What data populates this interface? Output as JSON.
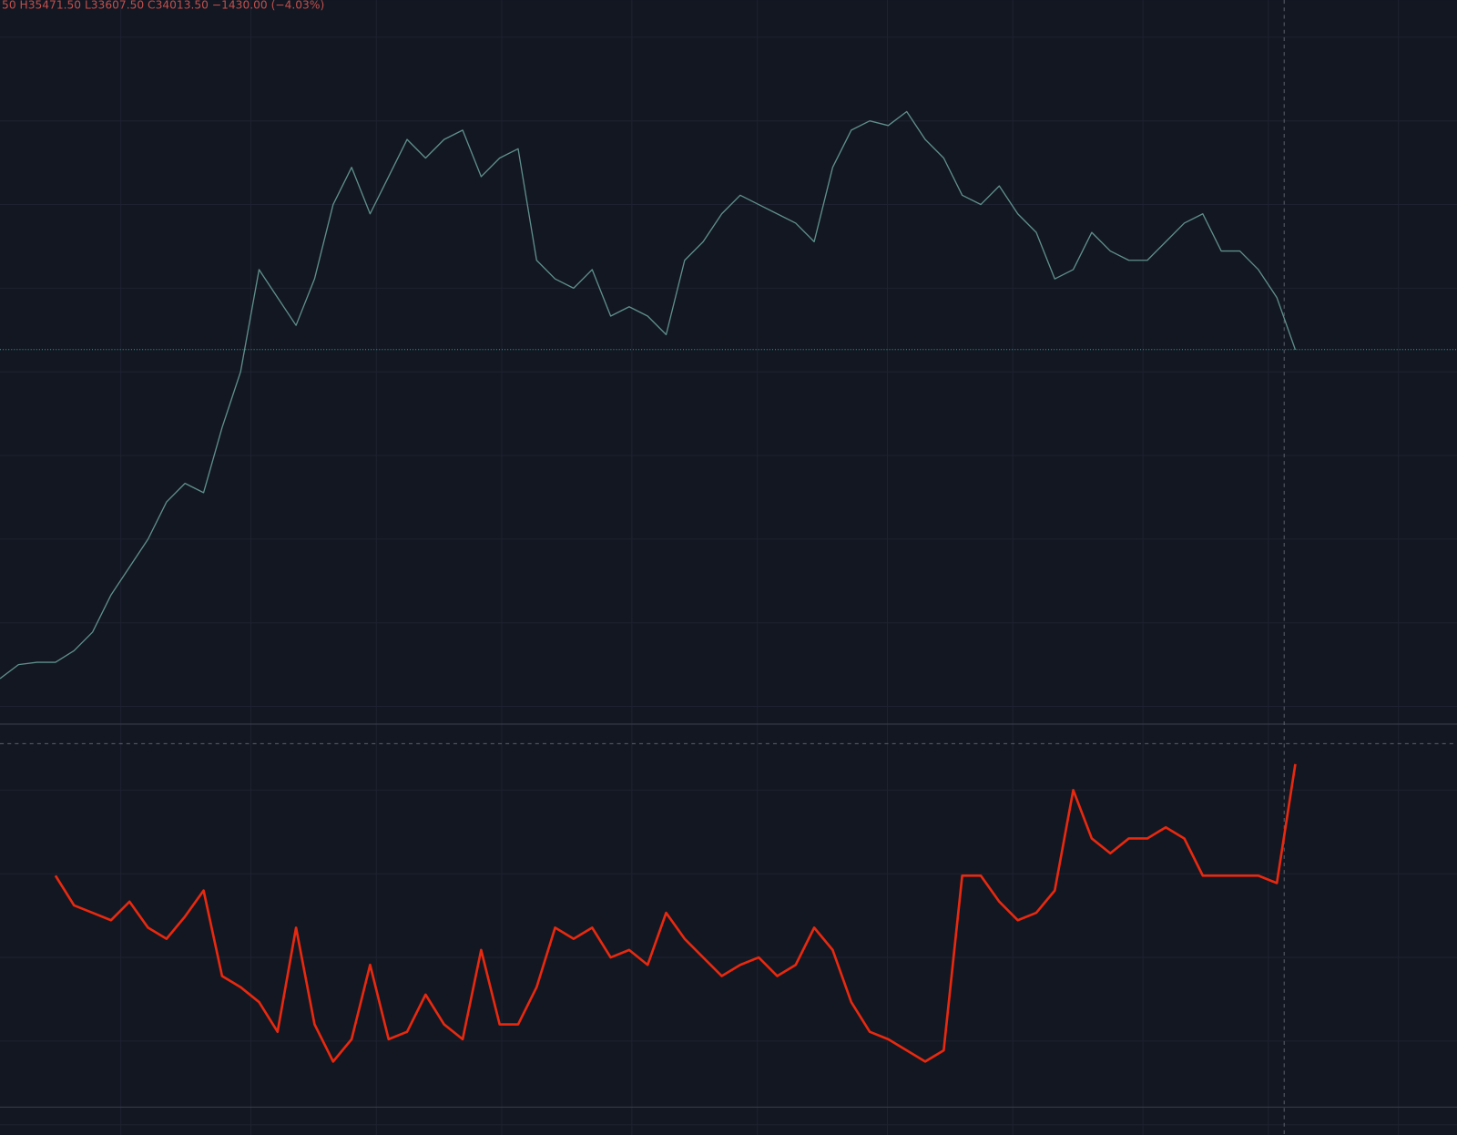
{
  "chart_data": {
    "type": "line",
    "annotation": "50  H35471.50  L33607.50  C34013.50  −1430.00 (−4.03%)",
    "ylim": [
      30780,
      37020
    ],
    "y2lim": [
      0,
      100
    ],
    "series": [
      {
        "color": "#5f8f8c",
        "values": [
          31180,
          31300,
          31320,
          31320,
          31420,
          31580,
          31900,
          32140,
          32380,
          32700,
          32860,
          32780,
          33340,
          33820,
          34700,
          34460,
          34220,
          34620,
          35260,
          35580,
          35180,
          35500,
          35820,
          35660,
          35820,
          35900,
          35500,
          35660,
          35740,
          34780,
          34620,
          34540,
          34700,
          34300,
          34380,
          34300,
          34140,
          34780,
          34940,
          35180,
          35340,
          35260,
          35180,
          35100,
          34940,
          35580,
          35900,
          35980,
          35940,
          36060,
          35820,
          35660,
          35340,
          35260,
          35420,
          35180,
          35020,
          34620,
          34700,
          35020,
          34860,
          34780,
          34780,
          34940,
          35100,
          35180,
          34860,
          34860,
          34700,
          34460,
          34010
        ]
      },
      {
        "color": "#e8290f",
        "axis": "y2",
        "values": [
          null,
          null,
          null,
          62,
          54,
          52,
          50,
          55,
          48,
          45,
          51,
          58,
          35,
          32,
          28,
          20,
          48,
          22,
          12,
          18,
          38,
          18,
          20,
          30,
          22,
          18,
          42,
          22,
          22,
          32,
          48,
          45,
          48,
          40,
          42,
          38,
          52,
          45,
          40,
          35,
          38,
          40,
          35,
          38,
          48,
          42,
          28,
          20,
          18,
          15,
          12,
          15,
          62,
          62,
          55,
          50,
          52,
          58,
          85,
          72,
          68,
          72,
          72,
          75,
          72,
          62,
          62,
          62,
          62,
          60,
          92
        ]
      }
    ]
  }
}
